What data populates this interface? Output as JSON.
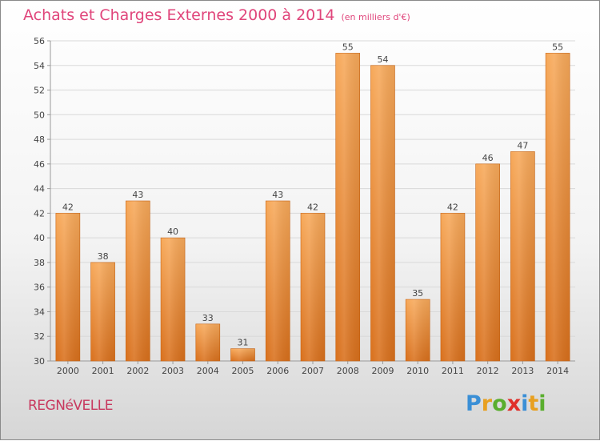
{
  "header": {
    "title": "Achats et Charges Externes 2000 à 2014",
    "subtitle": "(en milliers d'€)"
  },
  "footer": {
    "location": "REGNéVELLE",
    "brand_letters": [
      "P",
      "r",
      "o",
      "x",
      "i",
      "t",
      "i"
    ]
  },
  "colors": {
    "title": "#e0457b",
    "bar_light": "#f7a95a",
    "bar_dark": "#d9701c",
    "grid": "#d9d9d9"
  },
  "chart_data": {
    "type": "bar",
    "title": "Achats et Charges Externes 2000 à 2014",
    "subtitle": "(en milliers d'€)",
    "xlabel": "",
    "ylabel": "",
    "categories": [
      "2000",
      "2001",
      "2002",
      "2003",
      "2004",
      "2005",
      "2006",
      "2007",
      "2008",
      "2009",
      "2010",
      "2011",
      "2012",
      "2013",
      "2014"
    ],
    "values": [
      42,
      38,
      43,
      40,
      33,
      31,
      43,
      42,
      55,
      54,
      35,
      42,
      46,
      47,
      55
    ],
    "ylim": [
      30,
      56
    ],
    "yticks": [
      30,
      32,
      34,
      36,
      38,
      40,
      42,
      44,
      46,
      48,
      50,
      52,
      54,
      56
    ],
    "grid": true,
    "legend": "none"
  }
}
